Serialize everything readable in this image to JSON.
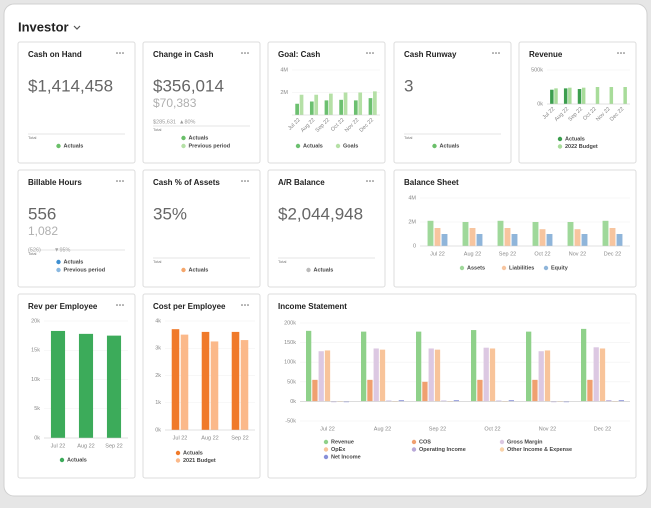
{
  "header": {
    "title": "Investor"
  },
  "kpis": [
    {
      "title": "Cash on Hand",
      "value": "$1,414,458",
      "axis_label": "Total",
      "legend": [
        {
          "name": "Actuals",
          "color": "#6abf69"
        }
      ]
    },
    {
      "title": "Change in Cash",
      "value": "$356,014",
      "secondary": "$70,383",
      "comparison": "$285,631",
      "delta": "▲80%",
      "axis_label": "Total",
      "legend": [
        {
          "name": "Actuals",
          "color": "#6abf69"
        },
        {
          "name": "Previous period",
          "color": "#b5e0a6"
        }
      ]
    },
    {
      "title": "Cash Runway",
      "value": "3",
      "axis_label": "Total",
      "legend": [
        {
          "name": "Actuals",
          "color": "#6abf69"
        }
      ]
    },
    {
      "title": "Billable Hours",
      "value": "556",
      "secondary": "1,082",
      "comparison": "(526)",
      "delta": "▼95%",
      "axis_label": "Total",
      "legend": [
        {
          "name": "Actuals",
          "color": "#3d8fd1"
        },
        {
          "name": "Previous period",
          "color": "#8ab8e0"
        }
      ]
    },
    {
      "title": "Cash % of Assets",
      "value": "35%",
      "axis_label": "Total",
      "legend": [
        {
          "name": "Actuals",
          "color": "#f5a66b"
        }
      ]
    },
    {
      "title": "A/R Balance",
      "value": "$2,044,948",
      "axis_label": "Total",
      "legend": [
        {
          "name": "Actuals",
          "color": "#bbbbbb"
        }
      ]
    }
  ],
  "chart_data": [
    {
      "type": "bar",
      "title": "Goal: Cash",
      "categories": [
        "Jul 22",
        "Aug 22",
        "Sep 22",
        "Oct 22",
        "Nov 22",
        "Dec 22"
      ],
      "series": [
        {
          "name": "Actuals",
          "color": "#6cc070",
          "values": [
            1000000,
            1200000,
            1300000,
            1350000,
            1300000,
            1500000
          ]
        },
        {
          "name": "Goals",
          "color": "#b5e0a6",
          "values": [
            1800000,
            1800000,
            1900000,
            2000000,
            2000000,
            2100000
          ]
        }
      ],
      "ylim": [
        0,
        4000000
      ],
      "yticks": [
        {
          "value": 4000000,
          "label": "4M"
        },
        {
          "value": 2000000,
          "label": "2M"
        }
      ],
      "grid": true
    },
    {
      "type": "bar",
      "title": "Revenue",
      "categories": [
        "Jul 22",
        "Aug 22",
        "Sep 22",
        "Oct 22",
        "Nov 22",
        "Dec 22"
      ],
      "series": [
        {
          "name": "Actuals",
          "color": "#3c9e4e",
          "values": [
            210000,
            230000,
            220000,
            null,
            null,
            null
          ]
        },
        {
          "name": "2022 Budget",
          "color": "#a8dc9a",
          "values": [
            230000,
            240000,
            240000,
            250000,
            250000,
            250000
          ]
        }
      ],
      "ylim": [
        0,
        500000
      ],
      "yticks": [
        {
          "value": 500000,
          "label": "500k"
        },
        {
          "value": 0,
          "label": "0k"
        }
      ],
      "grid": true
    },
    {
      "type": "bar",
      "title": "Balance Sheet",
      "categories": [
        "Jul 22",
        "Aug 22",
        "Sep 22",
        "Oct 22",
        "Nov 22",
        "Dec 22"
      ],
      "series": [
        {
          "name": "Assets",
          "color": "#9fd89a",
          "values": [
            2100000,
            2000000,
            2100000,
            2000000,
            2000000,
            2100000
          ]
        },
        {
          "name": "Liabilities",
          "color": "#f7c59f",
          "values": [
            1500000,
            1500000,
            1500000,
            1400000,
            1400000,
            1500000
          ]
        },
        {
          "name": "Equity",
          "color": "#8fb5da",
          "values": [
            1000000,
            1000000,
            1000000,
            1000000,
            1000000,
            1000000
          ]
        }
      ],
      "ylim": [
        0,
        4000000
      ],
      "yticks": [
        {
          "value": 4000000,
          "label": "4M"
        },
        {
          "value": 2000000,
          "label": "2M"
        },
        0
      ],
      "grid": true
    },
    {
      "type": "bar",
      "title": "Rev per Employee",
      "categories": [
        "Jul 22",
        "Aug 22",
        "Sep 22"
      ],
      "series": [
        {
          "name": "Actuals",
          "color": "#3cab5a",
          "values": [
            18300,
            17800,
            17500
          ]
        }
      ],
      "ylim": [
        0,
        20000
      ],
      "yticks": [
        {
          "value": 20000,
          "label": "20k"
        },
        {
          "value": 15000,
          "label": "15k"
        },
        {
          "value": 10000,
          "label": "10k"
        },
        {
          "value": 5000,
          "label": "5k"
        },
        {
          "value": 0,
          "label": "0k"
        }
      ],
      "grid": true
    },
    {
      "type": "bar",
      "title": "Cost per Employee",
      "categories": [
        "Jul 22",
        "Aug 22",
        "Sep 22"
      ],
      "series": [
        {
          "name": "Actuals",
          "color": "#f07a2a",
          "values": [
            3700,
            3600,
            3600
          ]
        },
        {
          "name": "2021 Budget",
          "color": "#fbb98a",
          "values": [
            3500,
            3250,
            3300
          ]
        }
      ],
      "ylim": [
        0,
        4000
      ],
      "yticks": [
        {
          "value": 4000,
          "label": "4k"
        },
        {
          "value": 3000,
          "label": "3k"
        },
        {
          "value": 2000,
          "label": "2k"
        },
        {
          "value": 1000,
          "label": "1k"
        },
        {
          "value": 0,
          "label": "0k"
        }
      ],
      "grid": true
    },
    {
      "type": "bar",
      "title": "Income Statement",
      "categories": [
        "Jul 22",
        "Aug 22",
        "Sep 22",
        "Oct 22",
        "Nov 22",
        "Dec 22"
      ],
      "series": [
        {
          "name": "Revenue",
          "color": "#8fd18a",
          "values": [
            180000,
            178000,
            178000,
            182000,
            178000,
            185000
          ]
        },
        {
          "name": "COS",
          "color": "#f0a070",
          "values": [
            55000,
            55000,
            50000,
            55000,
            55000,
            55000
          ]
        },
        {
          "name": "Gross Margin",
          "color": "#dcc8e2",
          "values": [
            128000,
            135000,
            135000,
            137000,
            128000,
            138000
          ]
        },
        {
          "name": "OpEx",
          "color": "#f8c49a",
          "values": [
            130000,
            132000,
            132000,
            135000,
            130000,
            135000
          ]
        },
        {
          "name": "Operating Income",
          "color": "#b8a8d8",
          "values": [
            -2000,
            2000,
            2000,
            2000,
            -2000,
            3000
          ]
        },
        {
          "name": "Other Income & Expense",
          "color": "#f9d2a8",
          "values": [
            0,
            0,
            0,
            0,
            0,
            0
          ]
        },
        {
          "name": "Net Income",
          "color": "#8890d8",
          "values": [
            -2000,
            3000,
            3000,
            3000,
            -2000,
            3000
          ]
        }
      ],
      "ylim": [
        -50000,
        200000
      ],
      "yticks": [
        {
          "value": 200000,
          "label": "200k"
        },
        {
          "value": 150000,
          "label": "150k"
        },
        {
          "value": 100000,
          "label": "100k"
        },
        {
          "value": 50000,
          "label": "50k"
        },
        {
          "value": 0,
          "label": "0k"
        },
        {
          "value": -50000,
          "label": "-50k"
        }
      ],
      "grid": true
    }
  ]
}
